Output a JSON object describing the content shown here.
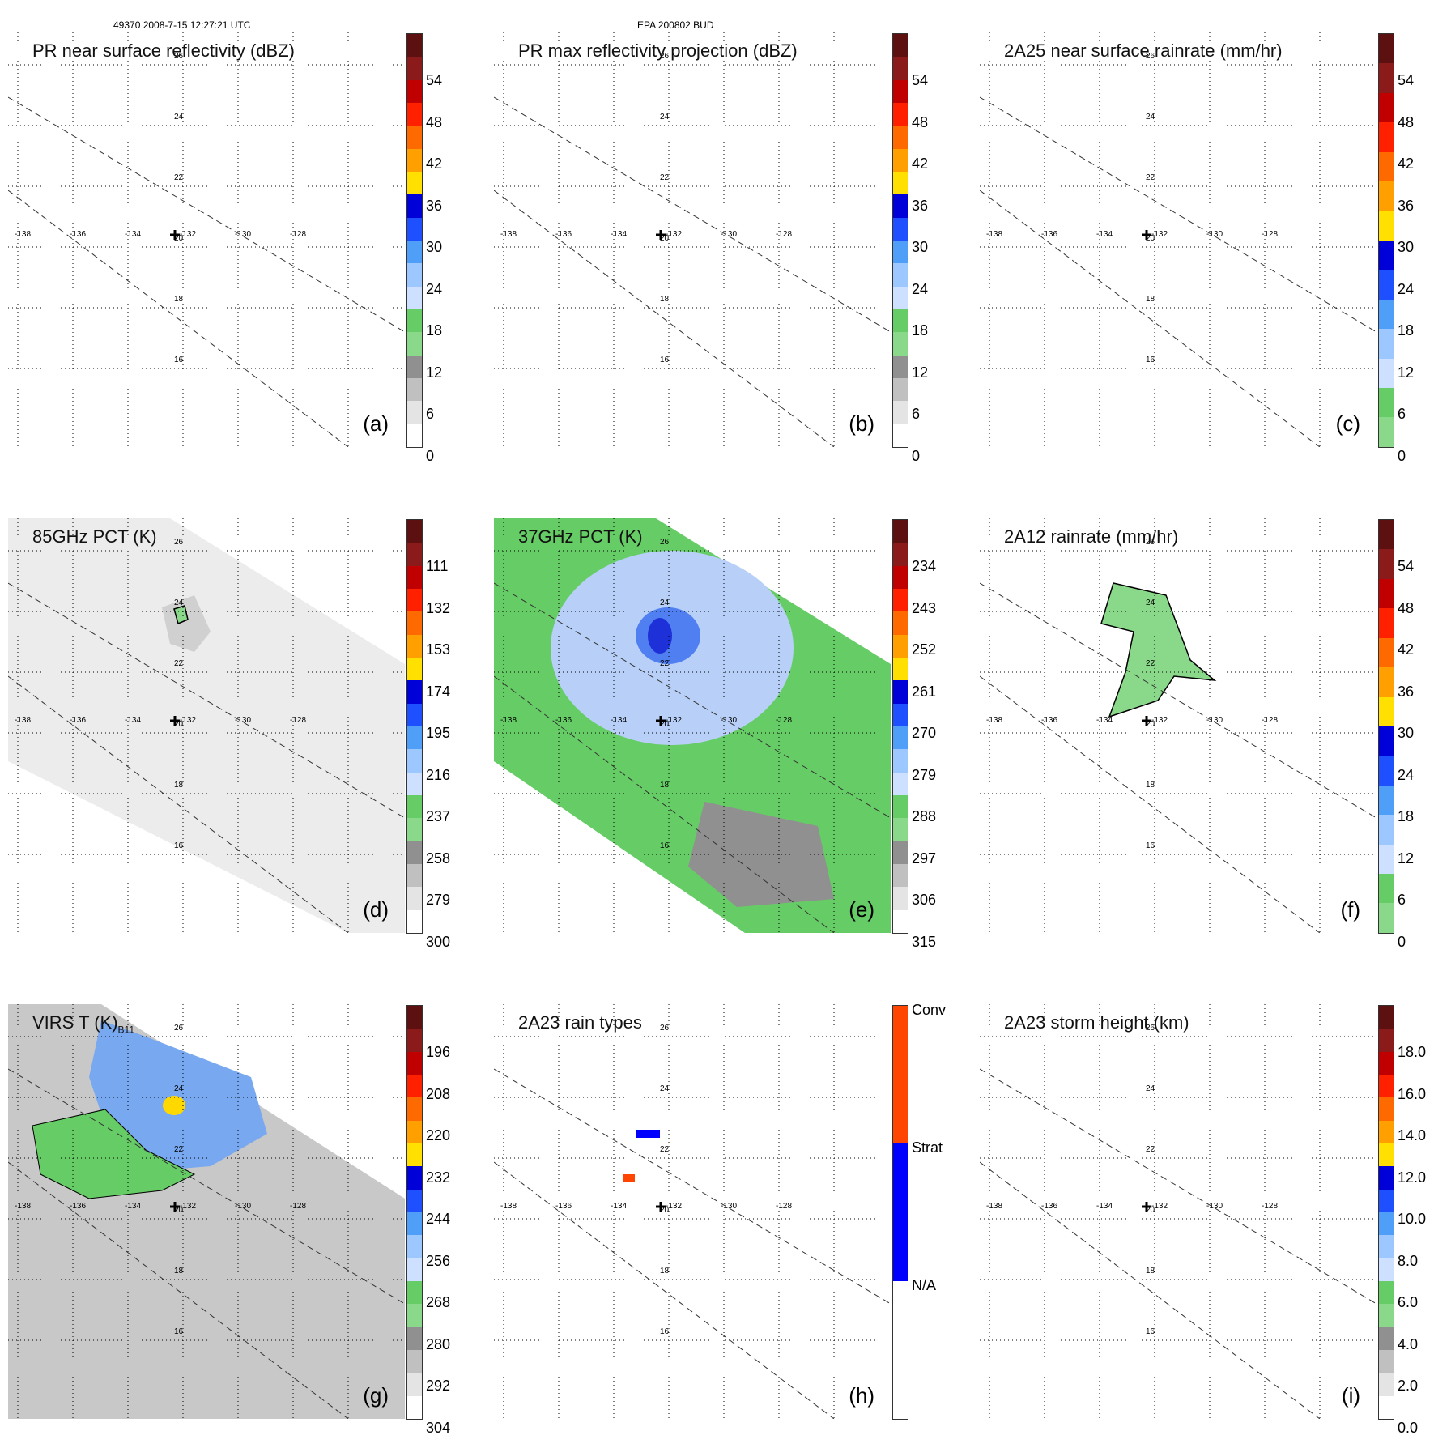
{
  "header": {
    "left_text": "49370 2008-7-15 12:27:21 UTC",
    "center_text": "EPA 200802 BUD"
  },
  "axes": {
    "lon_labels": [
      "-138",
      "-136",
      "-134",
      "-132",
      "-130",
      "-128"
    ],
    "lat_labels": [
      "26",
      "24",
      "22",
      "20",
      "18",
      "16"
    ]
  },
  "panels": [
    {
      "id": "a",
      "title": "PR near surface reflectivity (dBZ)",
      "letter": "(a)",
      "ticks": [
        "54",
        "48",
        "42",
        "36",
        "30",
        "24",
        "18",
        "12",
        "6",
        "0"
      ],
      "colors": [
        "#5c1010",
        "#8b1a1a",
        "#c00000",
        "#ff2000",
        "#ff6a00",
        "#ffa000",
        "#ffe000",
        "#0000d8",
        "#1e50ff",
        "#4f9ff8",
        "#9cc8ff",
        "#cde0ff",
        "#66cc66",
        "#8ad88a",
        "#909090",
        "#c0c0c0",
        "#e4e4e4",
        "#ffffff"
      ]
    },
    {
      "id": "b",
      "title": "PR max reflectivity projection (dBZ)",
      "letter": "(b)",
      "ticks": [
        "54",
        "48",
        "42",
        "36",
        "30",
        "24",
        "18",
        "12",
        "6",
        "0"
      ],
      "colors": [
        "#5c1010",
        "#8b1a1a",
        "#c00000",
        "#ff2000",
        "#ff6a00",
        "#ffa000",
        "#ffe000",
        "#0000d8",
        "#1e50ff",
        "#4f9ff8",
        "#9cc8ff",
        "#cde0ff",
        "#66cc66",
        "#8ad88a",
        "#909090",
        "#c0c0c0",
        "#e4e4e4",
        "#ffffff"
      ]
    },
    {
      "id": "c",
      "title": "2A25 near surface rainrate (mm/hr)",
      "letter": "(c)",
      "ticks": [
        "54",
        "48",
        "42",
        "36",
        "30",
        "24",
        "18",
        "12",
        "6",
        "0"
      ],
      "colors": [
        "#5c1010",
        "#8b1a1a",
        "#c00000",
        "#ff2000",
        "#ff6a00",
        "#ffa000",
        "#ffe000",
        "#0000d8",
        "#1e50ff",
        "#4f9ff8",
        "#9cc8ff",
        "#cde0ff",
        "#66cc66",
        "#8ad88a"
      ]
    },
    {
      "id": "d",
      "title": "85GHz PCT (K)",
      "letter": "(d)",
      "ticks": [
        "111",
        "132",
        "153",
        "174",
        "195",
        "216",
        "237",
        "258",
        "279",
        "300"
      ],
      "colors": [
        "#5c1010",
        "#8b1a1a",
        "#c00000",
        "#ff2000",
        "#ff6a00",
        "#ffa000",
        "#ffe000",
        "#0000d8",
        "#1e50ff",
        "#4f9ff8",
        "#9cc8ff",
        "#cde0ff",
        "#66cc66",
        "#8ad88a",
        "#909090",
        "#c0c0c0",
        "#e4e4e4",
        "#ffffff"
      ]
    },
    {
      "id": "e",
      "title": "37GHz PCT (K)",
      "letter": "(e)",
      "ticks": [
        "234",
        "243",
        "252",
        "261",
        "270",
        "279",
        "288",
        "297",
        "306",
        "315"
      ],
      "colors": [
        "#5c1010",
        "#8b1a1a",
        "#c00000",
        "#ff2000",
        "#ff6a00",
        "#ffa000",
        "#ffe000",
        "#0000d8",
        "#1e50ff",
        "#4f9ff8",
        "#9cc8ff",
        "#cde0ff",
        "#66cc66",
        "#8ad88a",
        "#909090",
        "#c0c0c0",
        "#e4e4e4",
        "#ffffff"
      ]
    },
    {
      "id": "f",
      "title": "2A12 rainrate (mm/hr)",
      "letter": "(f)",
      "ticks": [
        "54",
        "48",
        "42",
        "36",
        "30",
        "24",
        "18",
        "12",
        "6",
        "0"
      ],
      "colors": [
        "#5c1010",
        "#8b1a1a",
        "#c00000",
        "#ff2000",
        "#ff6a00",
        "#ffa000",
        "#ffe000",
        "#0000d8",
        "#1e50ff",
        "#4f9ff8",
        "#9cc8ff",
        "#cde0ff",
        "#66cc66",
        "#8ad88a"
      ]
    },
    {
      "id": "g",
      "title": "VIRS T (K)",
      "title_sub": "B11",
      "letter": "(g)",
      "ticks": [
        "196",
        "208",
        "220",
        "232",
        "244",
        "256",
        "268",
        "280",
        "292",
        "304"
      ],
      "colors": [
        "#5c1010",
        "#8b1a1a",
        "#c00000",
        "#ff2000",
        "#ff6a00",
        "#ffa000",
        "#ffe000",
        "#0000d8",
        "#1e50ff",
        "#4f9ff8",
        "#9cc8ff",
        "#cde0ff",
        "#66cc66",
        "#8ad88a",
        "#909090",
        "#c0c0c0",
        "#e4e4e4",
        "#ffffff"
      ]
    },
    {
      "id": "h",
      "title": "2A23 rain types",
      "letter": "(h)",
      "ticks": [
        "Conv",
        "Strat",
        "N/A"
      ],
      "colors": [
        "#ff4500",
        "#0000ff",
        "#ffffff"
      ]
    },
    {
      "id": "i",
      "title": "2A23 storm height (km)",
      "letter": "(i)",
      "ticks": [
        "18.0",
        "16.0",
        "14.0",
        "12.0",
        "10.0",
        "8.0",
        "6.0",
        "4.0",
        "2.0",
        "0.0"
      ],
      "colors": [
        "#5c1010",
        "#8b1a1a",
        "#c00000",
        "#ff2000",
        "#ff6a00",
        "#ffa000",
        "#ffe000",
        "#0000d8",
        "#1e50ff",
        "#4f9ff8",
        "#9cc8ff",
        "#cde0ff",
        "#66cc66",
        "#8ad88a",
        "#909090",
        "#c0c0c0",
        "#e4e4e4",
        "#ffffff"
      ]
    }
  ]
}
